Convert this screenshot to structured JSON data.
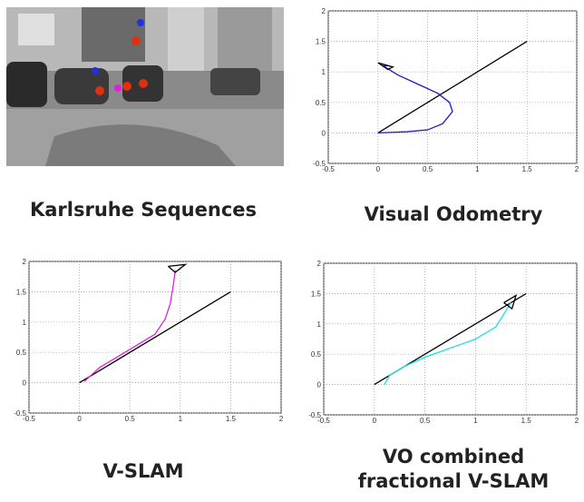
{
  "image_caption": "Karlsruhe Sequences",
  "chart_data": [
    {
      "type": "line",
      "title": "Visual Odometry",
      "xlim": [
        -0.5,
        2
      ],
      "ylim": [
        -0.5,
        2
      ],
      "xticks": [
        -0.5,
        0,
        0.5,
        1,
        1.5,
        2
      ],
      "yticks": [
        -0.5,
        0,
        0.5,
        1,
        1.5,
        2
      ],
      "grid": true,
      "series": [
        {
          "color": "#000000",
          "x": [
            0,
            1.5
          ],
          "values": [
            0,
            1.5
          ]
        },
        {
          "color": "#1a1ad0",
          "x": [
            0,
            0.15,
            0.3,
            0.5,
            0.65,
            0.75,
            0.72,
            0.6,
            0.4,
            0.2,
            0.05,
            0.1
          ],
          "values": [
            0,
            0.01,
            0.02,
            0.05,
            0.15,
            0.35,
            0.5,
            0.65,
            0.8,
            0.95,
            1.1,
            1.1
          ]
        },
        {
          "color": "#000000",
          "x": [
            0,
            0.15,
            0.1,
            0
          ],
          "values": [
            1.15,
            1.08,
            1.04,
            1.15
          ]
        }
      ]
    },
    {
      "type": "line",
      "title": "V-SLAM",
      "xlim": [
        -0.5,
        2
      ],
      "ylim": [
        -0.5,
        2
      ],
      "xticks": [
        -0.5,
        0,
        0.5,
        1,
        1.5,
        2
      ],
      "yticks": [
        -0.5,
        0,
        0.5,
        1,
        1.5,
        2
      ],
      "grid": true,
      "series": [
        {
          "color": "#000000",
          "x": [
            0,
            1.5
          ],
          "values": [
            0,
            1.5
          ]
        },
        {
          "color": "#e020e0",
          "x": [
            0.05,
            0.1,
            0.2,
            0.4,
            0.6,
            0.75,
            0.85,
            0.9,
            0.93,
            0.95
          ],
          "values": [
            0.02,
            0.1,
            0.25,
            0.45,
            0.65,
            0.8,
            1.05,
            1.3,
            1.6,
            1.85
          ]
        },
        {
          "color": "#000000",
          "x": [
            0.88,
            1.05,
            0.95,
            0.88
          ],
          "values": [
            1.92,
            1.95,
            1.82,
            1.92
          ]
        }
      ]
    },
    {
      "type": "line",
      "title": "VO combined fractional V-SLAM",
      "xlim": [
        -0.5,
        2
      ],
      "ylim": [
        -0.5,
        2
      ],
      "xticks": [
        -0.5,
        0,
        0.5,
        1,
        1.5,
        2
      ],
      "yticks": [
        -0.5,
        0,
        0.5,
        1,
        1.5,
        2
      ],
      "grid": true,
      "series": [
        {
          "color": "#000000",
          "x": [
            0,
            1.5
          ],
          "values": [
            0,
            1.5
          ]
        },
        {
          "color": "#20e0e0",
          "x": [
            0.1,
            0.15,
            0.3,
            0.5,
            0.75,
            1.0,
            1.2,
            1.35
          ],
          "values": [
            0,
            0.15,
            0.3,
            0.45,
            0.6,
            0.75,
            0.95,
            1.35
          ]
        },
        {
          "color": "#000000",
          "x": [
            1.28,
            1.4,
            1.36,
            1.28
          ],
          "values": [
            1.35,
            1.47,
            1.25,
            1.35
          ]
        }
      ]
    }
  ]
}
